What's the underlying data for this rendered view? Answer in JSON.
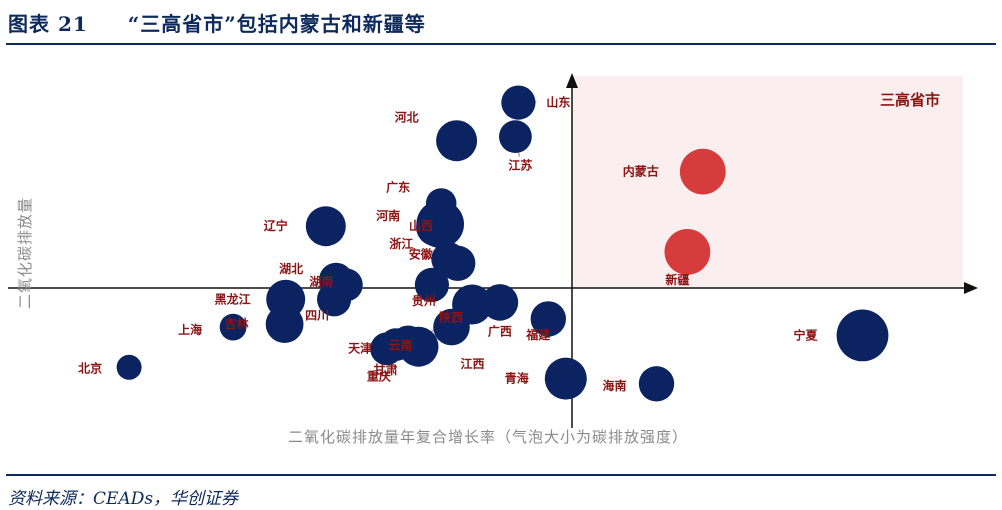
{
  "header": {
    "figure_number": "图表 21",
    "title": "“三高省市”包括内蒙古和新疆等"
  },
  "footer": {
    "source": "资料来源：CEADs，华创证券"
  },
  "colors": {
    "navy": "#0b2461",
    "red": "#d63c3c",
    "label": "#8b1414",
    "quadrant_fill": "#faeeee"
  },
  "chart_data": {
    "type": "scatter",
    "xlabel": "二氧化碳排放量年复合增长率（气泡大小为碳排放强度）",
    "ylabel": "二氧化碳排放量",
    "quadrant_label": "三高省市",
    "points": [
      {
        "label": "山东",
        "x": -0.52,
        "y": 1.8,
        "size": 0.55,
        "highlight": false
      },
      {
        "label": "河北",
        "x": -1.12,
        "y": 1.43,
        "size": 0.85,
        "highlight": false
      },
      {
        "label": "江苏",
        "x": -0.55,
        "y": 1.47,
        "size": 0.5,
        "highlight": false
      },
      {
        "label": "内蒙古",
        "x": 1.27,
        "y": 1.13,
        "size": 1.1,
        "highlight": true
      },
      {
        "label": "广东",
        "x": -1.27,
        "y": 0.82,
        "size": 0.42,
        "highlight": false
      },
      {
        "label": "河南",
        "x": -1.28,
        "y": 0.62,
        "size": 1.2,
        "highlight": false
      },
      {
        "label": "山西",
        "x": -1.33,
        "y": 0.59,
        "size": 0.7,
        "highlight": false
      },
      {
        "label": "辽宁",
        "x": -2.39,
        "y": 0.6,
        "size": 0.8,
        "highlight": false
      },
      {
        "label": "新疆",
        "x": 1.12,
        "y": 0.35,
        "size": 1.1,
        "highlight": true
      },
      {
        "label": "浙江",
        "x": -1.2,
        "y": 0.28,
        "size": 0.55,
        "highlight": false
      },
      {
        "label": "安徽",
        "x": -1.11,
        "y": 0.24,
        "size": 0.6,
        "highlight": false
      },
      {
        "label": "湖北",
        "x": -2.29,
        "y": 0.08,
        "size": 0.55,
        "highlight": false
      },
      {
        "label": "湖南",
        "x": -2.19,
        "y": 0.03,
        "size": 0.5,
        "highlight": false
      },
      {
        "label": "贵州",
        "x": -1.36,
        "y": 0.03,
        "size": 0.55,
        "highlight": false
      },
      {
        "label": "黑龙江",
        "x": -2.78,
        "y": -0.11,
        "size": 0.75,
        "highlight": false
      },
      {
        "label": "四川",
        "x": -2.31,
        "y": -0.11,
        "size": 0.55,
        "highlight": false
      },
      {
        "label": "陕西",
        "x": -0.97,
        "y": -0.16,
        "size": 0.8,
        "highlight": false
      },
      {
        "label": "广西",
        "x": -0.7,
        "y": -0.14,
        "size": 0.65,
        "highlight": false
      },
      {
        "label": "上海",
        "x": -3.29,
        "y": -0.38,
        "size": 0.3,
        "highlight": false
      },
      {
        "label": "吉林",
        "x": -2.79,
        "y": -0.35,
        "size": 0.7,
        "highlight": false
      },
      {
        "label": "天津",
        "x": -1.59,
        "y": -0.53,
        "size": 0.55,
        "highlight": false
      },
      {
        "label": "云南",
        "x": -1.49,
        "y": -0.57,
        "size": 0.8,
        "highlight": false
      },
      {
        "label": "江西",
        "x": -1.17,
        "y": -0.38,
        "size": 0.65,
        "highlight": false
      },
      {
        "label": "福建",
        "x": -0.23,
        "y": -0.3,
        "size": 0.6,
        "highlight": false
      },
      {
        "label": "宁夏",
        "x": 2.82,
        "y": -0.46,
        "size": 1.45,
        "highlight": false
      },
      {
        "label": "北京",
        "x": -4.3,
        "y": -0.77,
        "size": 0.25,
        "highlight": false
      },
      {
        "label": "甘肃",
        "x": -1.8,
        "y": -0.59,
        "size": 0.5,
        "highlight": false
      },
      {
        "label": "重庆",
        "x": -1.71,
        "y": -0.55,
        "size": 0.5,
        "highlight": false
      },
      {
        "label": "青海",
        "x": -0.06,
        "y": -0.88,
        "size": 0.9,
        "highlight": false
      },
      {
        "label": "海南",
        "x": 0.82,
        "y": -0.93,
        "size": 0.6,
        "highlight": false
      }
    ]
  }
}
